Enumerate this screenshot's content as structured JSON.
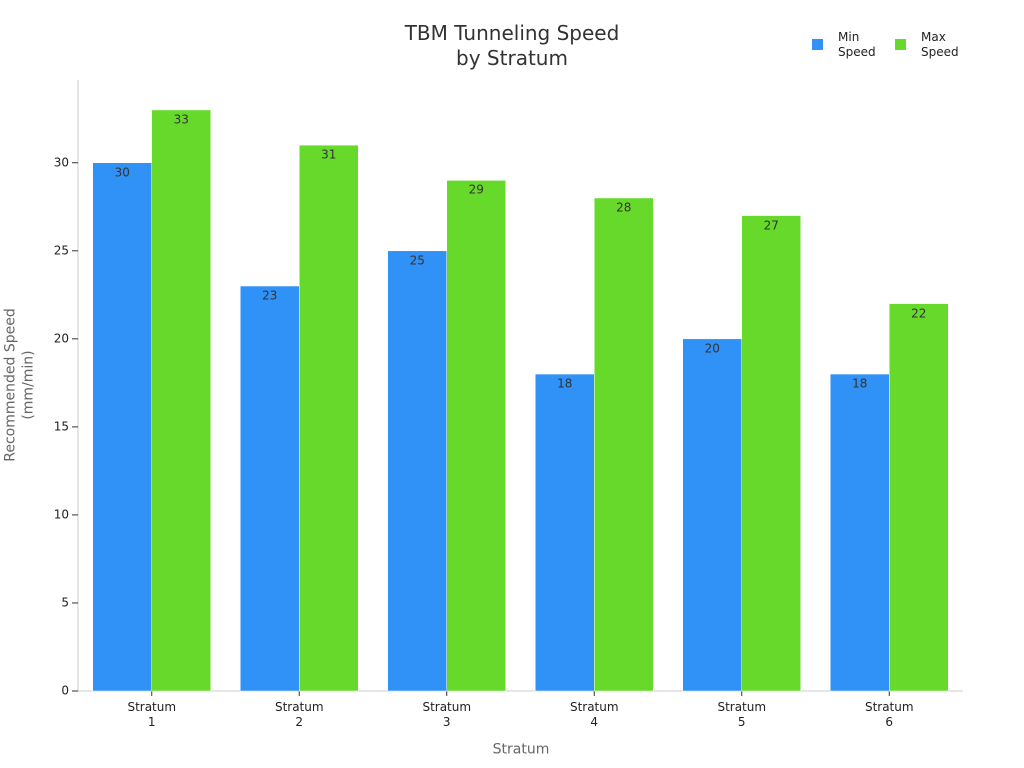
{
  "chart_data": {
    "type": "bar",
    "title": "TBM Tunneling Speed\nby Stratum",
    "x_label": "Stratum",
    "y_label": "Recommended Speed\n(mm/min)",
    "categories": [
      "Stratum\n1",
      "Stratum\n2",
      "Stratum\n3",
      "Stratum\n4",
      "Stratum\n5",
      "Stratum\n6"
    ],
    "series": [
      {
        "name": "Min\nSpeed",
        "color": "#3091f7",
        "values": [
          30,
          23,
          25,
          18,
          20,
          18
        ]
      },
      {
        "name": "Max\nSpeed",
        "color": "#66d92b",
        "values": [
          33,
          31,
          29,
          28,
          27,
          22
        ]
      }
    ],
    "ylim": [
      0,
      34.7
    ],
    "yticks": [
      0,
      5,
      10,
      15,
      20,
      25,
      30
    ],
    "grid": false,
    "legend": "top-right"
  }
}
